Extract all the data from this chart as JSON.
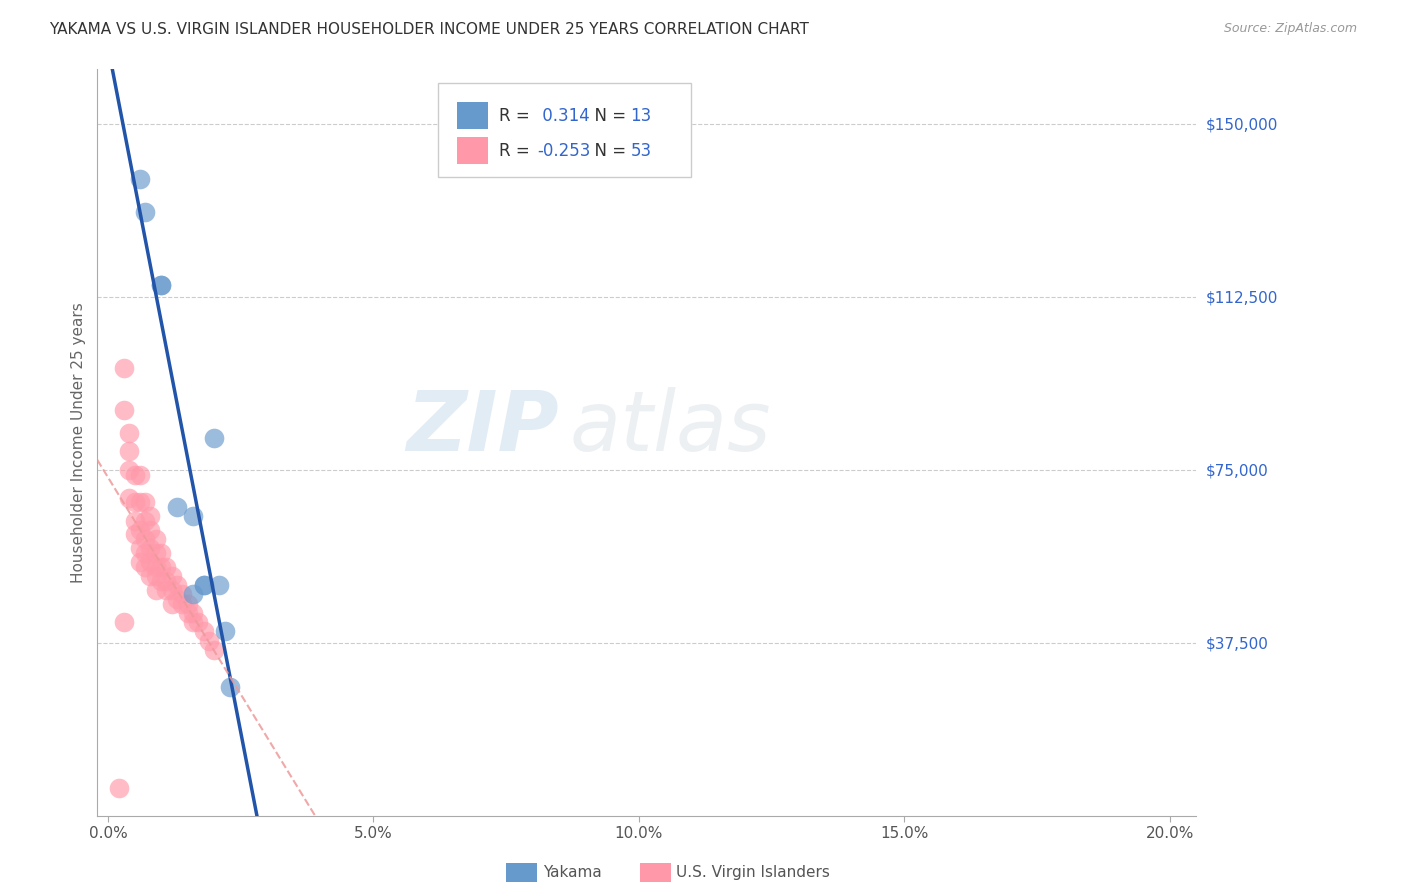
{
  "title": "YAKAMA VS U.S. VIRGIN ISLANDER HOUSEHOLDER INCOME UNDER 25 YEARS CORRELATION CHART",
  "source": "Source: ZipAtlas.com",
  "ylabel": "Householder Income Under 25 years",
  "xlabel_ticks": [
    "0.0%",
    "5.0%",
    "10.0%",
    "15.0%",
    "20.0%"
  ],
  "xlabel_vals": [
    0.0,
    0.05,
    0.1,
    0.15,
    0.2
  ],
  "ytick_labels": [
    "$37,500",
    "$75,000",
    "$112,500",
    "$150,000"
  ],
  "ytick_vals": [
    37500,
    75000,
    112500,
    150000
  ],
  "ylim": [
    0,
    162000
  ],
  "xlim": [
    -0.002,
    0.205
  ],
  "watermark_line1": "ZIP",
  "watermark_line2": "atlas",
  "yakama_R": 0.314,
  "yakama_N": 13,
  "virgin_R": -0.253,
  "virgin_N": 53,
  "yakama_color": "#6699CC",
  "virgin_color": "#FF99AA",
  "yakama_line_color": "#2255AA",
  "virgin_line_color": "#EE9999",
  "yakama_x": [
    0.006,
    0.007,
    0.01,
    0.01,
    0.013,
    0.016,
    0.016,
    0.018,
    0.018,
    0.02,
    0.021,
    0.022,
    0.023
  ],
  "yakama_y": [
    138000,
    131000,
    115000,
    115000,
    67000,
    65000,
    48000,
    50000,
    50000,
    82000,
    50000,
    40000,
    28000
  ],
  "virgin_x": [
    0.002,
    0.003,
    0.003,
    0.004,
    0.004,
    0.004,
    0.004,
    0.005,
    0.005,
    0.005,
    0.005,
    0.006,
    0.006,
    0.006,
    0.006,
    0.006,
    0.007,
    0.007,
    0.007,
    0.007,
    0.007,
    0.008,
    0.008,
    0.008,
    0.008,
    0.008,
    0.009,
    0.009,
    0.009,
    0.009,
    0.009,
    0.01,
    0.01,
    0.01,
    0.011,
    0.011,
    0.011,
    0.012,
    0.012,
    0.012,
    0.013,
    0.013,
    0.014,
    0.014,
    0.015,
    0.015,
    0.016,
    0.016,
    0.017,
    0.018,
    0.019,
    0.02,
    0.003
  ],
  "virgin_y": [
    6000,
    97000,
    88000,
    83000,
    79000,
    75000,
    69000,
    74000,
    68000,
    64000,
    61000,
    74000,
    68000,
    62000,
    58000,
    55000,
    68000,
    64000,
    60000,
    57000,
    54000,
    65000,
    62000,
    58000,
    55000,
    52000,
    60000,
    57000,
    54000,
    52000,
    49000,
    57000,
    54000,
    51000,
    54000,
    51000,
    49000,
    52000,
    49000,
    46000,
    50000,
    47000,
    48000,
    46000,
    46000,
    44000,
    44000,
    42000,
    42000,
    40000,
    38000,
    36000,
    42000
  ],
  "legend_box_color": "#ffffff",
  "legend_border_color": "#cccccc",
  "title_color": "#333333",
  "axis_label_color": "#666666",
  "tick_label_color_right": "#3366CC",
  "grid_color": "#cccccc",
  "background_color": "#ffffff"
}
